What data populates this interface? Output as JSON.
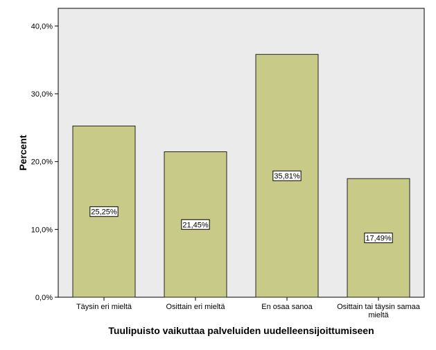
{
  "chart_data": {
    "type": "bar",
    "categories": [
      "Täysin eri mieltä",
      "Osittain eri mieltä",
      "En osaa sanoa",
      "Osittain tai täysin samaa mieltä"
    ],
    "category_label_lines": [
      [
        "Täysin eri mieltä"
      ],
      [
        "Osittain eri mieltä"
      ],
      [
        "En osaa sanoa"
      ],
      [
        "Osittain tai täysin samaa",
        "mieltä"
      ]
    ],
    "values": [
      25.25,
      21.45,
      35.81,
      17.49
    ],
    "data_labels": [
      "25,25%",
      "21,45%",
      "35,81%",
      "17,49%"
    ],
    "xlabel": "Tuulipuisto vaikuttaa palveluiden uudelleensijoittumiseen",
    "ylabel": "Percent",
    "ylim": [
      0,
      42.6
    ],
    "yticks": [
      0,
      10,
      20,
      30,
      40
    ],
    "ytick_labels": [
      "0,0%",
      "10,0%",
      "20,0%",
      "30,0%",
      "40,0%"
    ],
    "grid": false,
    "colors": {
      "bar_fill": "#c8cb87",
      "bar_stroke": "#222222",
      "plot_background": "#ebebeb",
      "label_box": "#ffffff"
    }
  }
}
